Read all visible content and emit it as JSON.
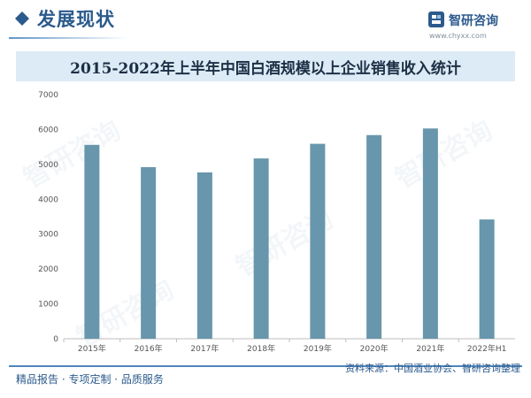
{
  "header": {
    "section_title": "发展现状",
    "brand_name": "智研咨询",
    "brand_url": "www.chyxx.com"
  },
  "footer": {
    "left": "精品报告 · 专项定制 · 品质服务",
    "source": "资料来源：中国酒业协会、智研咨询整理"
  },
  "watermark": "智研咨询",
  "colors": {
    "bar": "#6896ac",
    "accent": "#2b5a8c",
    "title_band": "#ddebf6"
  },
  "chart_data": {
    "type": "bar",
    "title": "2015-2022年上半年中国白酒规模以上企业销售收入统计",
    "categories": [
      "2015年",
      "2016年",
      "2017年",
      "2018年",
      "2019年",
      "2020年",
      "2021年",
      "2022年H1"
    ],
    "values": [
      5560,
      4920,
      4770,
      5170,
      5590,
      5840,
      6030,
      3420
    ],
    "ylim": [
      0,
      7000
    ],
    "yticks": [
      0,
      1000,
      2000,
      3000,
      4000,
      5000,
      6000,
      7000
    ],
    "xlabel": "",
    "ylabel": "",
    "grid": false,
    "legend": "none"
  }
}
